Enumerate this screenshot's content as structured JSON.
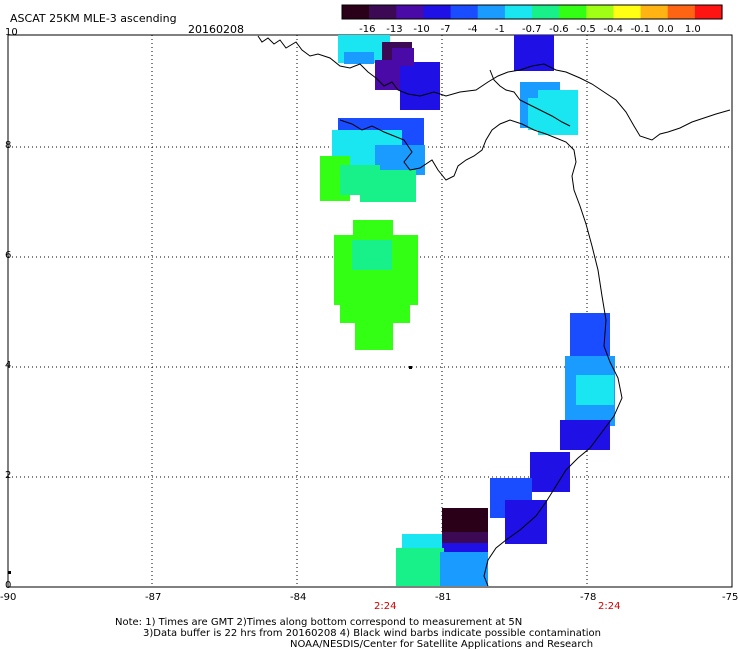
{
  "header": {
    "product": "ASCAT 25KM MLE-3 ascending",
    "date": "20160208"
  },
  "colorbar": {
    "labels": [
      "-16",
      "-13",
      "-10",
      "-7",
      "-4",
      "-1",
      "-0.7",
      "-0.6",
      "-0.5",
      "-0.4",
      "-0.1",
      "0.0",
      "1.0"
    ],
    "colors": [
      "#2a0019",
      "#3c0a55",
      "#4a0aa8",
      "#1f10e6",
      "#1a4dff",
      "#1a9bff",
      "#19e6f0",
      "#18f08a",
      "#32ff14",
      "#a0ff14",
      "#ffff14",
      "#ffb414",
      "#ff6414",
      "#ff1414"
    ]
  },
  "axes": {
    "x_ticks": [
      "-90",
      "-87",
      "-84",
      "-81",
      "-78",
      "-75"
    ],
    "y_ticks": [
      "0",
      "2",
      "4",
      "6",
      "8",
      "10"
    ],
    "time_labels": [
      "2:24",
      "2:24"
    ]
  },
  "map": {
    "coast_color": "#000000",
    "grid_color": "#000000"
  },
  "footer": {
    "line1": "Note: 1) Times are GMT 2)Times along bottom correspond to measurement at 5N",
    "line2": "3)Data buffer is 22 hrs from 20160208 4) Black wind barbs indicate possible contamination",
    "line3": "NOAA/NESDIS/Center for Satellite Applications and Research"
  }
}
